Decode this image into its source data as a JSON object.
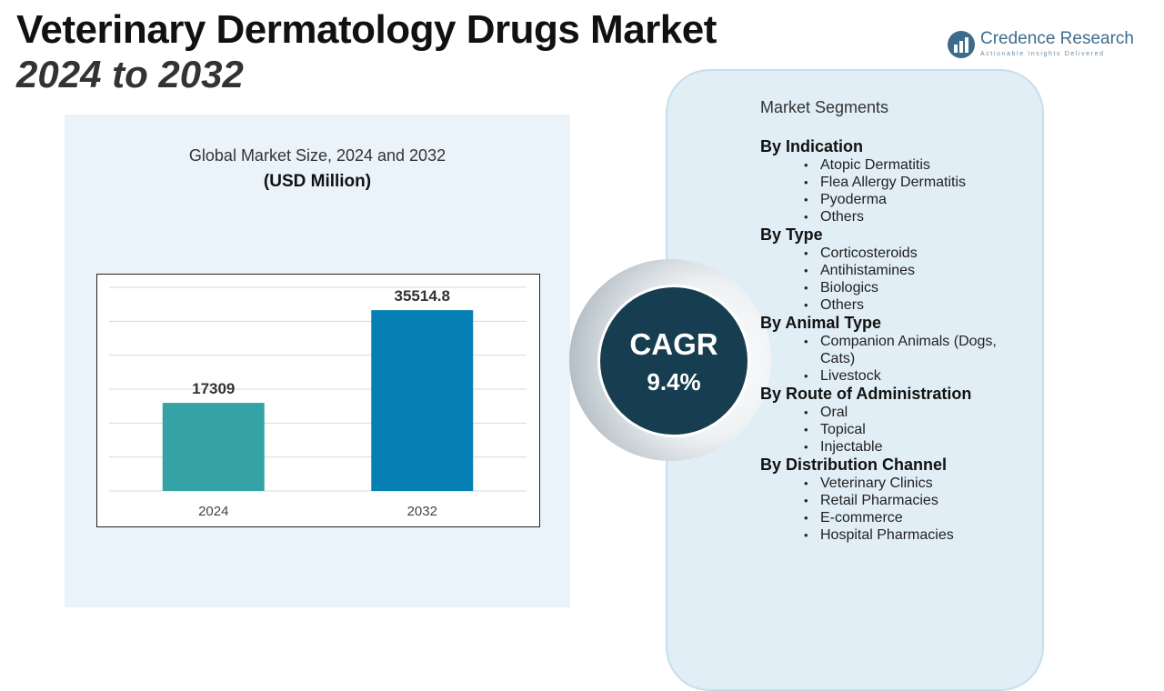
{
  "header": {
    "title": "Veterinary Dermatology Drugs Market",
    "subtitle": "2024 to 2032"
  },
  "logo": {
    "name": "Credence Research",
    "tagline": "Actionable Insights Delivered",
    "icon": "bar-growth-logo-icon"
  },
  "chart_data": {
    "type": "bar",
    "title": "Global Market Size, 2024 and 2032",
    "subtitle": "(USD Million)",
    "categories": [
      "2024",
      "2032"
    ],
    "values": [
      17309,
      35514.8
    ],
    "value_labels": [
      "17309",
      "35514.8"
    ],
    "colors": [
      "#35a3a6",
      "#0680b4"
    ],
    "ylim": [
      0,
      40000
    ],
    "grid": true,
    "xlabel": "",
    "ylabel": ""
  },
  "cagr": {
    "label": "CAGR",
    "value": "9.4%"
  },
  "segments": {
    "heading": "Market Segments",
    "groups": [
      {
        "title": "By Indication",
        "items": [
          "Atopic Dermatitis",
          "Flea Allergy Dermatitis",
          "Pyoderma",
          "Others"
        ]
      },
      {
        "title": "By Type",
        "items": [
          "Corticosteroids",
          "Antihistamines",
          "Biologics",
          "Others"
        ]
      },
      {
        "title": "By Animal Type",
        "items": [
          "Companion Animals (Dogs, Cats)",
          "Livestock"
        ]
      },
      {
        "title": "By Route of Administration",
        "items": [
          "Oral",
          "Topical",
          "Injectable"
        ]
      },
      {
        "title": "By Distribution Channel",
        "items": [
          "Veterinary Clinics",
          "Retail Pharmacies",
          "E-commerce",
          "Hospital Pharmacies"
        ]
      }
    ]
  }
}
